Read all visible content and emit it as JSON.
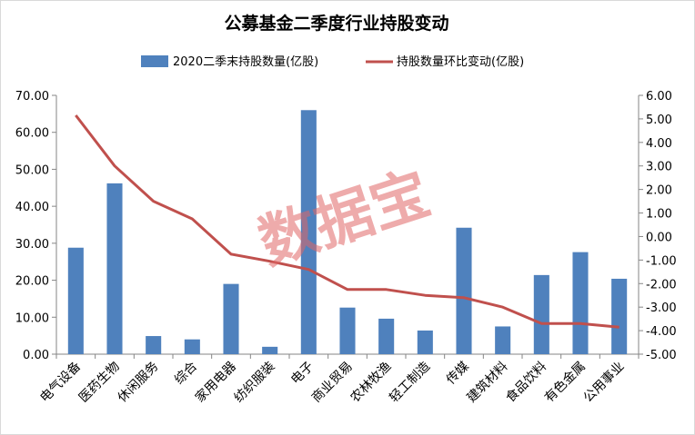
{
  "chart_data": {
    "type": "bar+line",
    "title": "公募基金二季度行业持股变动",
    "categories": [
      "电气设备",
      "医药生物",
      "休闲服务",
      "综合",
      "家用电器",
      "纺织服装",
      "电子",
      "商业贸易",
      "农林牧渔",
      "轻工制造",
      "传媒",
      "建筑材料",
      "食品饮料",
      "有色金属",
      "公用事业"
    ],
    "series": [
      {
        "name": "2020二季末持股数量(亿股)",
        "type": "bar",
        "axis": "left",
        "color": "#4f81bd",
        "values": [
          28.8,
          46.2,
          4.9,
          4.0,
          19.0,
          2.0,
          66.0,
          12.6,
          9.6,
          6.4,
          34.2,
          7.5,
          21.4,
          27.6,
          20.4
        ]
      },
      {
        "name": "持股数量环比变动(亿股)",
        "type": "line",
        "axis": "right",
        "color": "#c0504d",
        "values": [
          5.15,
          3.0,
          1.5,
          0.75,
          -0.75,
          -1.05,
          -1.4,
          -2.25,
          -2.25,
          -2.5,
          -2.6,
          -3.0,
          -3.7,
          -3.7,
          -3.85
        ]
      }
    ],
    "y_left": {
      "min": 0,
      "max": 70,
      "step": 10,
      "tick_labels": [
        "0.00",
        "10.00",
        "20.00",
        "30.00",
        "40.00",
        "50.00",
        "60.00",
        "70.00"
      ]
    },
    "y_right": {
      "min": -5,
      "max": 6,
      "step": 1,
      "tick_labels": [
        "-5.00",
        "-4.00",
        "-3.00",
        "-2.00",
        "-1.00",
        "0.00",
        "1.00",
        "2.00",
        "3.00",
        "4.00",
        "5.00",
        "6.00"
      ]
    },
    "legend_position": "top",
    "grid": false,
    "watermark": "数据宝"
  }
}
